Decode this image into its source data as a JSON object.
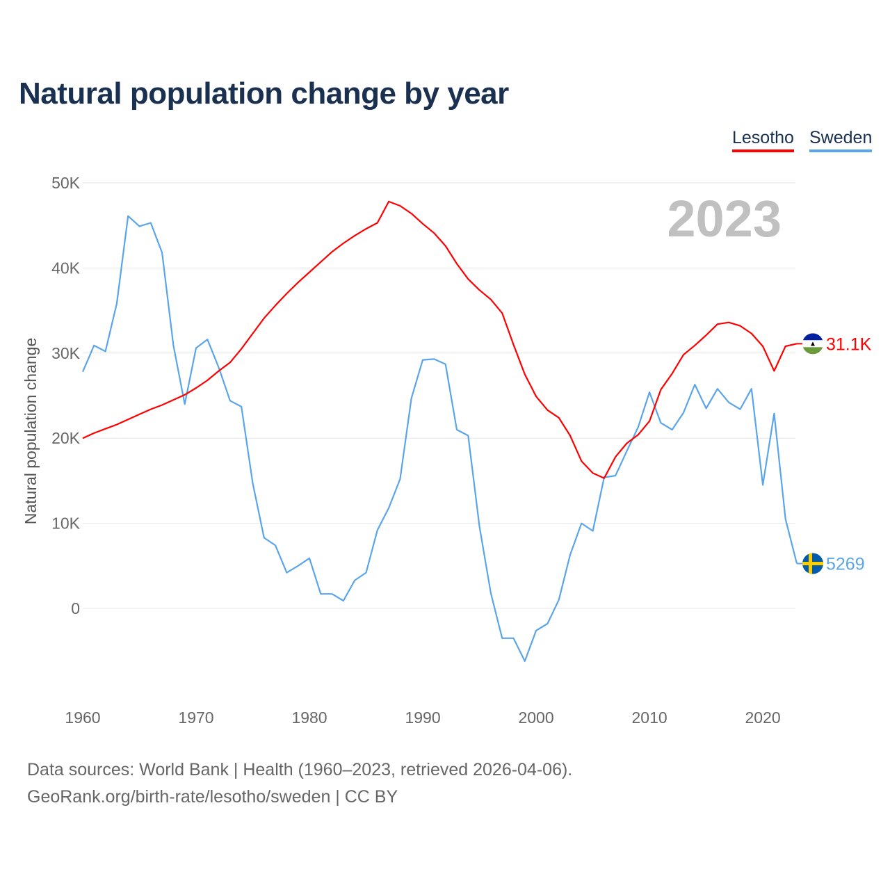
{
  "title": "Natural population change by year",
  "source_line1": "Data sources: World Bank | Health (1960–2023, retrieved 2026-04-06).",
  "source_line2": "GeoRank.org/birth-rate/lesotho/sweden | CC BY",
  "chart_data": {
    "type": "line",
    "title": "Natural population change by year",
    "xlabel": "",
    "ylabel": "Natural population change",
    "year_label": "2023",
    "xlim": [
      1960,
      2023
    ],
    "ylim": [
      -10000,
      50000
    ],
    "xticks": [
      1960,
      1970,
      1980,
      1990,
      2000,
      2010,
      2020
    ],
    "yticks": [
      {
        "v": 0,
        "label": "0"
      },
      {
        "v": 10000,
        "label": "10K"
      },
      {
        "v": 20000,
        "label": "20K"
      },
      {
        "v": 30000,
        "label": "30K"
      },
      {
        "v": 40000,
        "label": "40K"
      },
      {
        "v": 50000,
        "label": "50K"
      }
    ],
    "grid": true,
    "legend": "top-right",
    "x": [
      1960,
      1961,
      1962,
      1963,
      1964,
      1965,
      1966,
      1967,
      1968,
      1969,
      1970,
      1971,
      1972,
      1973,
      1974,
      1975,
      1976,
      1977,
      1978,
      1979,
      1980,
      1981,
      1982,
      1983,
      1984,
      1985,
      1986,
      1987,
      1988,
      1989,
      1990,
      1991,
      1992,
      1993,
      1994,
      1995,
      1996,
      1997,
      1998,
      1999,
      2000,
      2001,
      2002,
      2003,
      2004,
      2005,
      2006,
      2007,
      2008,
      2009,
      2010,
      2011,
      2012,
      2013,
      2014,
      2015,
      2016,
      2017,
      2018,
      2019,
      2020,
      2021,
      2022,
      2023
    ],
    "series": [
      {
        "name": "Lesotho",
        "color": "#ff0000",
        "end_label": "31.1K",
        "flag": "lesotho-flag",
        "values": [
          20000,
          20600,
          21100,
          21600,
          22200,
          22800,
          23400,
          23900,
          24500,
          25100,
          25900,
          26800,
          27900,
          28900,
          30500,
          32300,
          34100,
          35600,
          37000,
          38300,
          39500,
          40700,
          41900,
          42900,
          43800,
          44600,
          45300,
          47800,
          47300,
          46400,
          45200,
          44100,
          42600,
          40500,
          38700,
          37400,
          36300,
          34700,
          31000,
          27500,
          24900,
          23300,
          22400,
          20300,
          17300,
          15900,
          15300,
          17800,
          19400,
          20400,
          22000,
          25700,
          27600,
          29800,
          30900,
          32100,
          33400,
          33600,
          33200,
          32300,
          30800,
          27900,
          30800,
          31100
        ]
      },
      {
        "name": "Sweden",
        "color": "#5aa5ea",
        "end_label": "5269",
        "flag": "sweden-flag",
        "values": [
          27800,
          30900,
          30200,
          35800,
          46100,
          44900,
          45300,
          41800,
          30900,
          24000,
          30600,
          31600,
          28300,
          24400,
          23700,
          14700,
          8300,
          7400,
          4200,
          5000,
          5900,
          1700,
          1700,
          900,
          3300,
          4200,
          9200,
          11800,
          15200,
          24700,
          29200,
          29300,
          28700,
          21000,
          20300,
          9600,
          1800,
          -3500,
          -3500,
          -6200,
          -2600,
          -1800,
          1000,
          6300,
          10000,
          9100,
          15400,
          15600,
          18500,
          21300,
          25400,
          21800,
          21000,
          23000,
          26300,
          23500,
          25800,
          24200,
          23400,
          25800,
          14500,
          22900,
          10500,
          5269
        ]
      }
    ]
  }
}
